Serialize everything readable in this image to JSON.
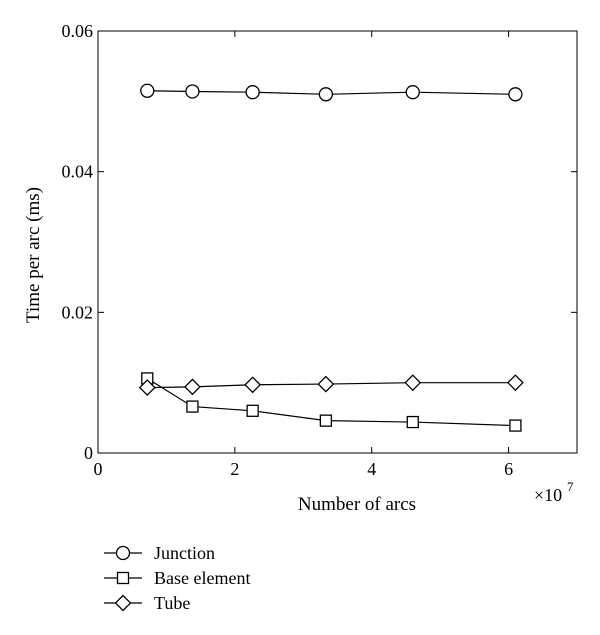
{
  "chart_data": {
    "type": "line",
    "xlabel": "Number of arcs",
    "ylabel": "Time per arc (ms)",
    "x_multiplier_base": "×10",
    "x_multiplier_exp": "7",
    "xlim": [
      0,
      7
    ],
    "ylim": [
      0,
      0.06
    ],
    "x_ticks": [
      0,
      2,
      4,
      6
    ],
    "x_tick_labels": [
      "0",
      "2",
      "4",
      "6"
    ],
    "y_ticks": [
      0,
      0.02,
      0.04,
      0.06
    ],
    "y_tick_labels": [
      "0",
      "0.02",
      "0.04",
      "0.06"
    ],
    "grid": false,
    "legend_position": "below",
    "line_color": "#000000",
    "series": [
      {
        "name": "Junction",
        "marker": "circle",
        "x": [
          0.72,
          1.38,
          2.26,
          3.33,
          4.6,
          6.1
        ],
        "y": [
          0.0515,
          0.0514,
          0.0513,
          0.051,
          0.0513,
          0.051
        ]
      },
      {
        "name": "Base element",
        "marker": "square",
        "x": [
          0.72,
          1.38,
          2.26,
          3.33,
          4.6,
          6.1
        ],
        "y": [
          0.0106,
          0.0066,
          0.006,
          0.0046,
          0.0044,
          0.0039
        ]
      },
      {
        "name": "Tube",
        "marker": "diamond",
        "x": [
          0.72,
          1.38,
          2.26,
          3.33,
          4.6,
          6.1
        ],
        "y": [
          0.0093,
          0.0094,
          0.0097,
          0.0098,
          0.01,
          0.01
        ]
      }
    ]
  }
}
